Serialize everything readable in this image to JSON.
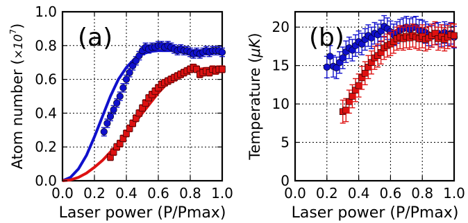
{
  "chart_data": [
    {
      "type": "scatter",
      "panel_label": "(a)",
      "xlabel": "Laser power (P/Pmax)",
      "ylabel_text": "Atom number (",
      "ylabel_unit_base": "×10",
      "ylabel_unit_exp": "7",
      "ylabel_close": ")",
      "xlim": [
        0,
        1
      ],
      "ylim": [
        0,
        1
      ],
      "xticks": [
        "0.0",
        "0.2",
        "0.4",
        "0.6",
        "0.8",
        "1.0"
      ],
      "yticks": [
        "0.0",
        "0.2",
        "0.4",
        "0.6",
        "0.8",
        "1.0"
      ],
      "grid": true,
      "grid_style": "dotted",
      "series": [
        {
          "color": "#1010cc",
          "marker": "circle",
          "x": [
            0.26,
            0.28,
            0.3,
            0.32,
            0.34,
            0.36,
            0.38,
            0.4,
            0.42,
            0.44,
            0.46,
            0.48,
            0.5,
            0.52,
            0.54,
            0.56,
            0.58,
            0.6,
            0.62,
            0.64,
            0.66,
            0.68,
            0.7,
            0.72,
            0.74,
            0.76,
            0.78,
            0.8,
            0.82,
            0.84,
            0.86,
            0.88,
            0.9,
            0.92,
            0.94,
            0.96,
            0.98,
            1.0
          ],
          "y": [
            0.29,
            0.34,
            0.38,
            0.42,
            0.46,
            0.5,
            0.55,
            0.6,
            0.64,
            0.68,
            0.71,
            0.74,
            0.77,
            0.79,
            0.78,
            0.79,
            0.79,
            0.8,
            0.8,
            0.79,
            0.8,
            0.79,
            0.78,
            0.77,
            0.78,
            0.77,
            0.77,
            0.76,
            0.75,
            0.76,
            0.75,
            0.76,
            0.77,
            0.76,
            0.77,
            0.77,
            0.77,
            0.76
          ],
          "yerr": 0.025,
          "fit_x": [
            0.0,
            0.05,
            0.1,
            0.15,
            0.2,
            0.25,
            0.3,
            0.35,
            0.4,
            0.45,
            0.5,
            0.55,
            0.6,
            0.65,
            0.7,
            0.75,
            0.8,
            0.85,
            0.9,
            0.95,
            1.0
          ],
          "fit_y": [
            0.0,
            0.02,
            0.07,
            0.15,
            0.26,
            0.38,
            0.5,
            0.6,
            0.67,
            0.72,
            0.75,
            0.765,
            0.77,
            0.77,
            0.77,
            0.77,
            0.77,
            0.77,
            0.77,
            0.77,
            0.77
          ]
        },
        {
          "color": "#dd1111",
          "marker": "square",
          "x": [
            0.3,
            0.32,
            0.34,
            0.36,
            0.38,
            0.4,
            0.42,
            0.44,
            0.46,
            0.48,
            0.5,
            0.52,
            0.54,
            0.56,
            0.58,
            0.6,
            0.62,
            0.64,
            0.66,
            0.68,
            0.7,
            0.72,
            0.74,
            0.76,
            0.78,
            0.8,
            0.82,
            0.84,
            0.86,
            0.88,
            0.9,
            0.92,
            0.94,
            0.96,
            0.98,
            1.0
          ],
          "y": [
            0.14,
            0.17,
            0.2,
            0.22,
            0.25,
            0.28,
            0.31,
            0.34,
            0.37,
            0.4,
            0.43,
            0.46,
            0.49,
            0.51,
            0.53,
            0.55,
            0.57,
            0.58,
            0.59,
            0.6,
            0.61,
            0.62,
            0.63,
            0.64,
            0.65,
            0.66,
            0.67,
            0.66,
            0.63,
            0.64,
            0.65,
            0.64,
            0.66,
            0.65,
            0.66,
            0.66
          ],
          "yerr": 0.02,
          "fit_x": [
            0.0,
            0.05,
            0.1,
            0.15,
            0.2,
            0.25,
            0.3,
            0.35,
            0.4,
            0.45,
            0.5,
            0.55,
            0.6,
            0.65,
            0.7,
            0.75,
            0.8,
            0.85,
            0.9,
            0.95,
            1.0
          ],
          "fit_y": [
            0.0,
            0.005,
            0.02,
            0.045,
            0.08,
            0.12,
            0.17,
            0.22,
            0.28,
            0.34,
            0.4,
            0.46,
            0.52,
            0.57,
            0.61,
            0.635,
            0.65,
            0.66,
            0.665,
            0.665,
            0.665
          ]
        }
      ]
    },
    {
      "type": "scatter",
      "panel_label": "(b)",
      "xlabel": "Laser power (P/Pmax)",
      "ylabel_text": "Temperature (",
      "ylabel_unit": "μK",
      "ylabel_close": ")",
      "xlim": [
        0,
        1
      ],
      "ylim": [
        0,
        22
      ],
      "xticks": [
        "0.0",
        "0.2",
        "0.4",
        "0.6",
        "0.8",
        "1.0"
      ],
      "yticks": [
        "0",
        "5",
        "10",
        "15",
        "20"
      ],
      "ytick_values": [
        0,
        5,
        10,
        15,
        20
      ],
      "grid": true,
      "grid_style": "dotted",
      "series": [
        {
          "color": "#1010cc",
          "marker": "circle",
          "x": [
            0.2,
            0.22,
            0.24,
            0.26,
            0.28,
            0.3,
            0.32,
            0.34,
            0.36,
            0.38,
            0.4,
            0.42,
            0.44,
            0.46,
            0.48,
            0.5,
            0.52,
            0.54,
            0.56,
            0.58,
            0.6,
            0.62,
            0.64,
            0.66,
            0.68,
            0.7,
            0.72,
            0.74,
            0.76,
            0.78,
            0.8,
            0.82,
            0.84,
            0.86,
            0.88,
            0.9,
            0.92,
            0.94,
            0.96,
            0.98,
            1.0
          ],
          "y": [
            14.8,
            16.2,
            14.9,
            14.7,
            15.4,
            16.0,
            16.8,
            17.3,
            17.0,
            17.6,
            18.1,
            17.8,
            18.4,
            18.9,
            18.6,
            19.2,
            19.0,
            19.5,
            20.1,
            19.8,
            19.4,
            19.0,
            19.3,
            19.6,
            19.8,
            20.0,
            19.7,
            19.9,
            20.0,
            19.6,
            19.5,
            19.3,
            19.0,
            18.8,
            19.1,
            19.2,
            18.9,
            19.3,
            19.0,
            19.2,
            18.7
          ],
          "yerr": 1.4
        },
        {
          "color": "#dd1111",
          "marker": "square",
          "x": [
            0.3,
            0.32,
            0.34,
            0.36,
            0.38,
            0.4,
            0.42,
            0.44,
            0.46,
            0.48,
            0.5,
            0.52,
            0.54,
            0.56,
            0.58,
            0.6,
            0.62,
            0.64,
            0.66,
            0.68,
            0.7,
            0.72,
            0.74,
            0.76,
            0.78,
            0.8,
            0.82,
            0.84,
            0.86,
            0.88,
            0.9,
            0.92,
            0.94,
            0.96,
            0.98,
            1.0
          ],
          "y": [
            9.0,
            9.2,
            10.3,
            11.0,
            11.8,
            12.4,
            13.4,
            14.0,
            14.8,
            15.4,
            16.0,
            16.3,
            16.7,
            17.3,
            17.6,
            17.8,
            18.1,
            18.5,
            18.7,
            18.5,
            18.8,
            18.6,
            18.9,
            18.7,
            18.5,
            18.8,
            18.4,
            18.6,
            18.9,
            19.2,
            18.5,
            18.8,
            18.4,
            18.7,
            19.0,
            18.9
          ],
          "yerr": 1.5
        }
      ]
    }
  ]
}
